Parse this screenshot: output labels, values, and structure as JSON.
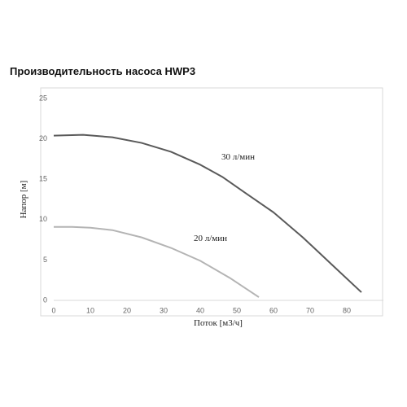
{
  "chart_data": {
    "type": "line",
    "title": "Производительность насоса HWP3",
    "x_label": "Поток [м3/ч]",
    "y_label": "Напор [м]",
    "xlim": [
      0,
      90
    ],
    "xticks": [
      0,
      10,
      20,
      30,
      40,
      50,
      60,
      70,
      80
    ],
    "ylim": [
      0,
      25
    ],
    "yticks": [
      0,
      5,
      10,
      15,
      20,
      25
    ],
    "grid": false,
    "series": [
      {
        "name": "30 л/мин",
        "color": "#5a5a5a",
        "x": [
          0,
          8,
          16,
          24,
          32,
          40,
          46,
          52,
          60,
          68,
          76,
          84
        ],
        "values": [
          20.4,
          20.5,
          20.2,
          19.5,
          18.4,
          16.8,
          15.3,
          13.4,
          10.9,
          7.8,
          4.4,
          1.0
        ]
      },
      {
        "name": "20 л/мин",
        "color": "#b4b4b4",
        "x": [
          0,
          5,
          10,
          16,
          24,
          32,
          40,
          48,
          56
        ],
        "values": [
          9.1,
          9.1,
          9.0,
          8.7,
          7.8,
          6.5,
          4.9,
          2.8,
          0.4
        ]
      }
    ]
  }
}
